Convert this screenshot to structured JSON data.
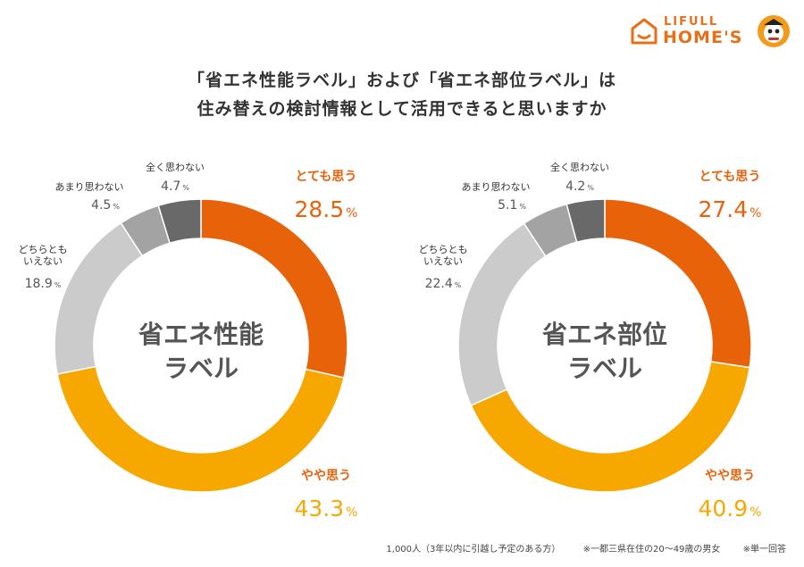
{
  "title": {
    "line1": "「省エネ性能ラベル」および「省エネ部位ラベル」は",
    "line2": "住み替えの検討情報として活用できると思いますか"
  },
  "logo": {
    "line1": "LIFULL",
    "line2": "HOME'S"
  },
  "footer": {
    "sample": "1,000人（3年以内に引越し予定のある方）",
    "note1": "※一都三県在住の20〜49歳の男女",
    "note2": "※単一回答"
  },
  "colors": {
    "very": "#e8620a",
    "somewhat": "#f6a800",
    "neither": "#cbcbcb",
    "not_much": "#a3a3a3",
    "not_at_all": "#696969",
    "label_orange": "#e8620a",
    "label_yellow": "#f6a800"
  },
  "chart_data": [
    {
      "type": "pie",
      "center_label": [
        "省エネ性能",
        "ラベル"
      ],
      "unit": "%",
      "slices": [
        {
          "label": "とても思う",
          "value": 28.5
        },
        {
          "label": "やや思う",
          "value": 43.3
        },
        {
          "label": "どちらとも\nいえない",
          "value": 18.9
        },
        {
          "label": "あまり思わない",
          "value": 4.5
        },
        {
          "label": "全く思わない",
          "value": 4.7
        }
      ]
    },
    {
      "type": "pie",
      "center_label": [
        "省エネ部位",
        "ラベル"
      ],
      "unit": "%",
      "slices": [
        {
          "label": "とても思う",
          "value": 27.4
        },
        {
          "label": "やや思う",
          "value": 40.9
        },
        {
          "label": "どちらとも\nいえない",
          "value": 22.4
        },
        {
          "label": "あまり思わない",
          "value": 5.1
        },
        {
          "label": "全く思わない",
          "value": 4.2
        }
      ]
    }
  ]
}
